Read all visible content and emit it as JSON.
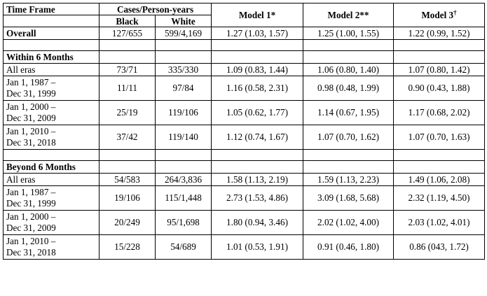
{
  "header": {
    "time_frame": "Time Frame",
    "cases_person_years": "Cases/Person-years",
    "black": "Black",
    "white": "White",
    "model1": "Model 1*",
    "model2": "Model 2**",
    "model3_base": "Model 3",
    "model3_sup": "†"
  },
  "rows": {
    "overall": {
      "label": "Overall",
      "black": "127/655",
      "white": "599/4,169",
      "m1": "1.27 (1.03, 1.57)",
      "m2": "1.25 (1.00, 1.55)",
      "m3": "1.22 (0.99, 1.52)"
    },
    "within_header": "Within 6 Months",
    "within": [
      {
        "label1": "All eras",
        "label2": "",
        "black": "73/71",
        "white": "335/330",
        "m1": "1.09 (0.83, 1.44)",
        "m2": "1.06 (0.80, 1.40)",
        "m3": "1.07 (0.80, 1.42)"
      },
      {
        "label1": "Jan 1, 1987 –",
        "label2": "Dec 31, 1999",
        "black": "11/11",
        "white": "97/84",
        "m1": "1.16 (0.58, 2.31)",
        "m2": "0.98 (0.48, 1.99)",
        "m3": "0.90 (0.43, 1.88)"
      },
      {
        "label1": "Jan 1, 2000 –",
        "label2": "Dec 31, 2009",
        "black": "25/19",
        "white": "119/106",
        "m1": "1.05 (0.62, 1.77)",
        "m2": "1.14 (0.67, 1.95)",
        "m3": "1.17 (0.68, 2.02)"
      },
      {
        "label1": "Jan 1, 2010 –",
        "label2": "Dec 31, 2018",
        "black": "37/42",
        "white": "119/140",
        "m1": "1.12 (0.74, 1.67)",
        "m2": "1.07 (0.70, 1.62)",
        "m3": "1.07 (0.70, 1.63)"
      }
    ],
    "beyond_header": "Beyond 6 Months",
    "beyond": [
      {
        "label1": "All eras",
        "label2": "",
        "black": "54/583",
        "white": "264/3,836",
        "m1": "1.58 (1.13, 2.19)",
        "m2": "1.59 (1.13, 2.23)",
        "m3": "1.49 (1.06, 2.08)"
      },
      {
        "label1": "Jan 1, 1987 –",
        "label2": "Dec 31, 1999",
        "black": "19/106",
        "white": "115/1,448",
        "m1": "2.73 (1.53, 4.86)",
        "m2": "3.09 (1.68, 5.68)",
        "m3": "2.32 (1.19, 4.50)"
      },
      {
        "label1": "Jan 1, 2000 –",
        "label2": "Dec 31, 2009",
        "black": "20/249",
        "white": "95/1,698",
        "m1": "1.80 (0.94, 3.46)",
        "m2": "2.02 (1.02, 4.00)",
        "m3": "2.03 (1.02, 4.01)"
      },
      {
        "label1": "Jan 1, 2010 –",
        "label2": "Dec 31, 2018",
        "black": "15/228",
        "white": "54/689",
        "m1": "1.01 (0.53, 1.91)",
        "m2": "0.91 (0.46, 1.80)",
        "m3": "0.86 (043, 1.72)"
      }
    ]
  }
}
